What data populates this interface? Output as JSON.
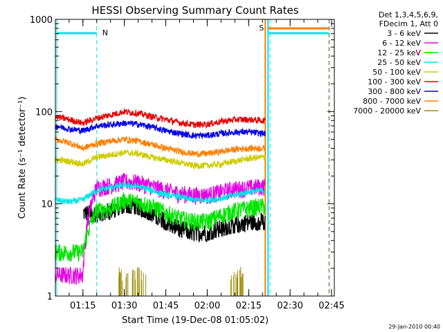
{
  "chart_data": {
    "type": "line",
    "title": "HESSI Observing Summary Count Rates",
    "xlabel": "Start Time (19-Dec-08 01:05:02)",
    "ylabel": "Count Rate (s⁻¹ detector⁻¹)",
    "yscale": "log",
    "ylim": [
      1,
      1000
    ],
    "xlim": [
      "01:05:02",
      "02:46:00"
    ],
    "x_ticks": [
      "01:15",
      "01:30",
      "01:45",
      "02:00",
      "02:15",
      "02:30",
      "02:45"
    ],
    "y_ticks": [
      "1",
      "10",
      "100",
      "1000"
    ],
    "legend_header": [
      "Det 1,3,4,5,6,9,",
      "FDecim 1, Att 0"
    ],
    "legend_position": "outside-right",
    "timestamp": "29-Jan-2010 00:40",
    "flag_labels": [
      "N",
      "S"
    ],
    "flag_colors": {
      "N": "#00e5e5",
      "S": "#ff7f00"
    },
    "x": [
      "01:05",
      "01:10",
      "01:15",
      "01:20",
      "01:25",
      "01:30",
      "01:35",
      "01:40",
      "01:45",
      "01:50",
      "01:55",
      "02:00",
      "02:05",
      "02:10",
      "02:15",
      "02:20"
    ],
    "series": [
      {
        "name": "3 - 6 keV",
        "color": "#000000",
        "values": [
          null,
          null,
          null,
          8,
          8.5,
          10,
          9.5,
          8,
          6.5,
          5.5,
          5,
          5,
          5.5,
          6,
          6.5,
          6.5
        ]
      },
      {
        "name": "6 - 12 keV",
        "color": "#e600e6",
        "values": [
          1.7,
          1.7,
          1.7,
          15,
          16,
          17.5,
          17,
          15.5,
          14,
          13,
          12.5,
          12.5,
          13.5,
          14.5,
          15,
          15.5
        ]
      },
      {
        "name": "12 - 25 keV",
        "color": "#00e600",
        "values": [
          3,
          3,
          3,
          8.5,
          9,
          11,
          10.5,
          9.5,
          8,
          7,
          6.5,
          6.5,
          7.5,
          8.5,
          9,
          9.5
        ]
      },
      {
        "name": "25 - 50 keV",
        "color": "#00e5e5",
        "values": [
          11,
          10.5,
          11,
          14,
          15,
          16,
          15.5,
          14,
          12.5,
          12,
          11,
          11,
          11.5,
          12.5,
          13.5,
          14
        ]
      },
      {
        "name": "50 - 100 keV",
        "color": "#cccc00",
        "values": [
          30,
          29,
          27,
          32,
          34,
          36,
          35,
          32,
          30,
          28,
          26,
          26,
          27,
          29,
          31,
          32
        ]
      },
      {
        "name": "100 - 300 keV",
        "color": "#e60000",
        "values": [
          88,
          82,
          75,
          85,
          92,
          100,
          96,
          88,
          82,
          76,
          72,
          73,
          78,
          82,
          82,
          80
        ]
      },
      {
        "name": "300 - 800 keV",
        "color": "#0000e6",
        "values": [
          70,
          65,
          62,
          70,
          72,
          75,
          73,
          68,
          62,
          58,
          55,
          55,
          58,
          60,
          60,
          58
        ]
      },
      {
        "name": "800 - 7000 keV",
        "color": "#ff7f00",
        "values": [
          50,
          46,
          40,
          45,
          48,
          50,
          48,
          44,
          40,
          37,
          35,
          35,
          37,
          39,
          40,
          40
        ]
      },
      {
        "name": "7000 - 20000 keV",
        "color": "#998800",
        "values": [
          null,
          null,
          null,
          null,
          null,
          1.6,
          1.6,
          null,
          null,
          null,
          null,
          null,
          null,
          1.6,
          null,
          null
        ]
      }
    ]
  }
}
